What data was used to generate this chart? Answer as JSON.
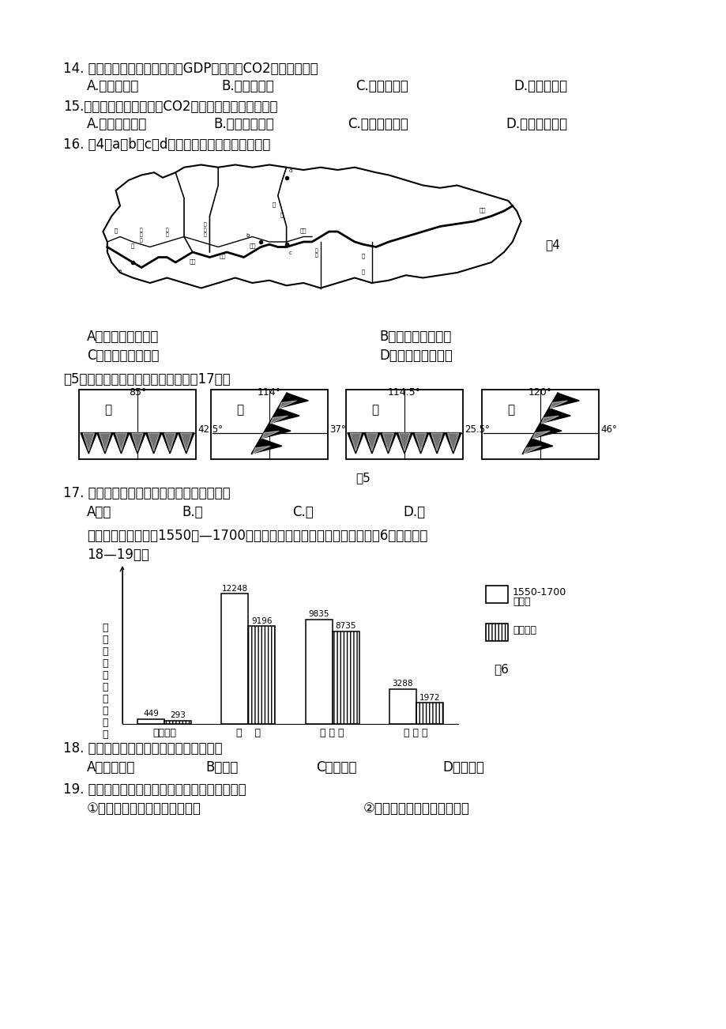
{
  "bg_color": "#ffffff",
  "q14_text": "14. 与全国人均水平相比，人均GDP高、人均CO2排放量低的是",
  "q14a": "A.上海、天津",
  "q14b": "B.广东、福建",
  "q14c": "C.海南、贵州",
  "q14d": "D.辽宁、山东",
  "q15_text": "15.山西、内蒙古两地人均CO2排放量高，其主要原因是",
  "q15a": "A.自然资源贫乏",
  "q15b": "B.交通设施落后",
  "q15c": "C.煮炭消耗量大",
  "q15d": "D.第三产业发达",
  "q16_text": "16. 图4中a、b、c、d四处水电站分布的共同特点是",
  "fig4_label": "图4",
  "q16a": "A．位于河流交汇处",
  "q16b": "B．位于平原分布区",
  "q16c": "C．位于城市密布区",
  "q16d": "D．位于阶梯交界处",
  "fig5_caption": "图5为我国四座重要山脉，读图完成第17题。",
  "fig5_label": "图5",
  "q17_text": "17. 属于我国季风区与非季风区界线的山脉为",
  "q17a": "A．甲",
  "q17b": "B.乙",
  "q17c": "C.丙",
  "q17d": "D.丁",
  "intro1": "读我国西北部分山系1550年—1700年冰川与现有冰川面积的变化情况（图6），完成第",
  "intro2": "18—19题。",
  "bar_categories": [
    "阿尔泰山",
    "天    山",
    "昆 仑 山",
    "祗 连 山"
  ],
  "bar_old": [
    449,
    12248,
    9835,
    3288
  ],
  "bar_new": [
    293,
    9196,
    8735,
    1972
  ],
  "bar_old_labels": [
    "449",
    "12248",
    "9835",
    "3288"
  ],
  "bar_new_labels": [
    "293",
    "9196",
    "8735",
    "1972"
  ],
  "yaxis_label": "冰川面积（平方千米）",
  "legend_old": "1550-1700\n年面积",
  "legend_new": "现有面积",
  "fig6_label": "图6",
  "q18_text": "18. 图中所列山脉冰川面积变化率最大的是",
  "q18a": "A．阿尔泰山",
  "q18b": "B．天山",
  "q18c": "C．昆仑山",
  "q18d": "D．祗连山",
  "q19_text": "19. 我国西北山系现有冰川面积大幅缩减的原因有",
  "q19_1": "①酸性气体的大量排放导致酸雨",
  "q19_2": "②农业生产发展大量引水灌溉"
}
